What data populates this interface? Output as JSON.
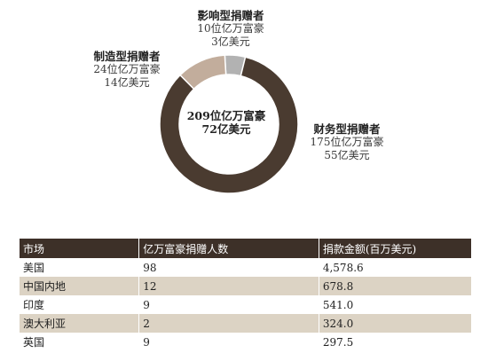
{
  "chart_data": {
    "type": "pie",
    "variant": "donut",
    "center_text": [
      "209位亿万富豪",
      "72亿美元"
    ],
    "slices": [
      {
        "name": "财务型捐赠者",
        "count_label": "175位亿万富豪",
        "amount_label": "55亿美元",
        "value": 175,
        "color": "#4a3b30"
      },
      {
        "name": "制造型捐赠者",
        "count_label": "24位亿万富豪",
        "amount_label": "14亿美元",
        "value": 24,
        "color": "#c2ad9c"
      },
      {
        "name": "影响型捐赠者",
        "count_label": "10位亿万富豪",
        "amount_label": "3亿美元",
        "value": 10,
        "color": "#b2b2b2"
      }
    ]
  },
  "table": {
    "headers": [
      "市场",
      "亿万富豪捐赠人数",
      "捐款金额(百万美元)"
    ],
    "rows": [
      [
        "美国",
        "98",
        "4,578.6"
      ],
      [
        "中国内地",
        "12",
        "678.8"
      ],
      [
        "印度",
        "9",
        "541.0"
      ],
      [
        "澳大利亚",
        "2",
        "324.0"
      ],
      [
        "英国",
        "9",
        "297.5"
      ]
    ]
  }
}
